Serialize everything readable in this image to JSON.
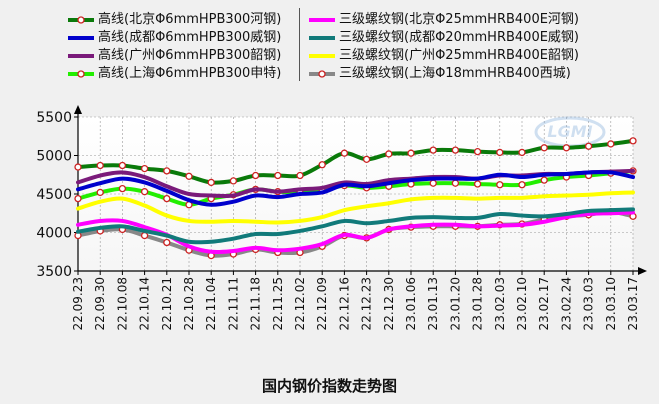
{
  "title": "国内钢价指数走势图",
  "chart_data": {
    "type": "line",
    "title": "国内钢价指数走势图",
    "xlabel": "",
    "ylabel": "",
    "ylim": [
      3500,
      5500
    ],
    "yticks": [
      3500,
      4000,
      4500,
      5000,
      5500
    ],
    "grid": true,
    "legend_position": "top",
    "x": [
      "22.09.23",
      "22.09.30",
      "22.10.08",
      "22.10.14",
      "22.10.21",
      "22.10.28",
      "22.11.04",
      "22.11.11",
      "22.11.18",
      "22.11.25",
      "22.12.02",
      "22.12.09",
      "22.12.16",
      "22.12.23",
      "22.12.30",
      "23.01.06",
      "23.01.13",
      "23.01.20",
      "23.01.28",
      "23.02.03",
      "23.02.10",
      "23.02.17",
      "23.02.24",
      "23.03.03",
      "23.03.10",
      "23.03.17"
    ],
    "x_tick_labels": [
      "22.09.23",
      "22.09.30",
      "22.10.08",
      "22.10.14",
      "22.10.21",
      "22.10.28",
      "22.11.04",
      "22.11.11",
      "22.11.18",
      "22.11.25",
      "22.12.02",
      "22.12.09",
      "22.12.16",
      "22.12.23",
      "22.12.30",
      "23.01.06",
      "23.01.13",
      "23.01.20",
      "23.01.28",
      "23.02.03",
      "23.02.10",
      "23.02.17",
      "23.02.24",
      "23.03.03",
      "23.03.10",
      "23.03.17"
    ],
    "series": [
      {
        "name": "高线(北京Φ6mmHPB300河钢)",
        "color": "#0a7a0a",
        "markers": true,
        "values": [
          4850,
          4870,
          4870,
          4830,
          4800,
          4730,
          4650,
          4670,
          4740,
          4740,
          4740,
          4880,
          5030,
          4950,
          5020,
          5030,
          5070,
          5070,
          5050,
          5040,
          5040,
          5100,
          5100,
          5120,
          5150,
          5190
        ]
      },
      {
        "name": "高线(成都Φ6mmHPB300威钢)",
        "color": "#0000cc",
        "markers": false,
        "values": [
          4560,
          4640,
          4700,
          4650,
          4540,
          4420,
          4360,
          4400,
          4480,
          4460,
          4500,
          4520,
          4620,
          4600,
          4640,
          4680,
          4700,
          4700,
          4700,
          4750,
          4720,
          4750,
          4760,
          4780,
          4780,
          4720
        ]
      },
      {
        "name": "高线(广州Φ6mmHPB300韶钢)",
        "color": "#7a1a7a",
        "markers": false,
        "values": [
          4650,
          4740,
          4780,
          4720,
          4600,
          4500,
          4480,
          4480,
          4560,
          4530,
          4560,
          4580,
          4650,
          4630,
          4680,
          4700,
          4720,
          4720,
          4700,
          4740,
          4740,
          4760,
          4760,
          4780,
          4790,
          4800
        ]
      },
      {
        "name": "高线(上海Φ6mmHPB300申特)",
        "color": "#22ee00",
        "markers": true,
        "values": [
          4440,
          4520,
          4570,
          4530,
          4440,
          4360,
          4440,
          4490,
          4560,
          4530,
          4520,
          4540,
          4610,
          4580,
          4600,
          4630,
          4640,
          4640,
          4630,
          4620,
          4620,
          4680,
          4720,
          4740,
          4770,
          4800
        ]
      },
      {
        "name": "三级螺纹钢(北京Φ25mmHRB400E河钢)",
        "color": "#ff00ff",
        "markers": false,
        "values": [
          4100,
          4150,
          4150,
          4070,
          3970,
          3820,
          3750,
          3760,
          3800,
          3770,
          3790,
          3850,
          3970,
          3930,
          4040,
          4080,
          4100,
          4100,
          4080,
          4090,
          4100,
          4140,
          4200,
          4240,
          4250,
          4260
        ]
      },
      {
        "name": "三级螺纹钢(成都Φ20mmHRB400E威钢)",
        "color": "#117a7a",
        "markers": false,
        "values": [
          4010,
          4060,
          4080,
          4020,
          3960,
          3880,
          3880,
          3920,
          3980,
          3980,
          4020,
          4080,
          4150,
          4120,
          4150,
          4190,
          4200,
          4190,
          4190,
          4240,
          4220,
          4210,
          4240,
          4280,
          4290,
          4300
        ]
      },
      {
        "name": "三级螺纹钢(广州Φ25mmHRB400E韶钢)",
        "color": "#ffff00",
        "markers": false,
        "values": [
          4310,
          4400,
          4440,
          4350,
          4220,
          4150,
          4140,
          4150,
          4140,
          4130,
          4150,
          4200,
          4290,
          4340,
          4380,
          4430,
          4450,
          4450,
          4440,
          4450,
          4450,
          4470,
          4480,
          4490,
          4510,
          4520
        ]
      },
      {
        "name": "三级螺纹钢(上海Φ18mmHRB400西城)",
        "color": "#888888",
        "markers": true,
        "values": [
          3960,
          4020,
          4040,
          3960,
          3870,
          3770,
          3700,
          3720,
          3780,
          3740,
          3740,
          3820,
          3960,
          3930,
          4040,
          4070,
          4080,
          4080,
          4080,
          4100,
          4110,
          4170,
          4210,
          4230,
          4270,
          4210
        ]
      }
    ]
  }
}
